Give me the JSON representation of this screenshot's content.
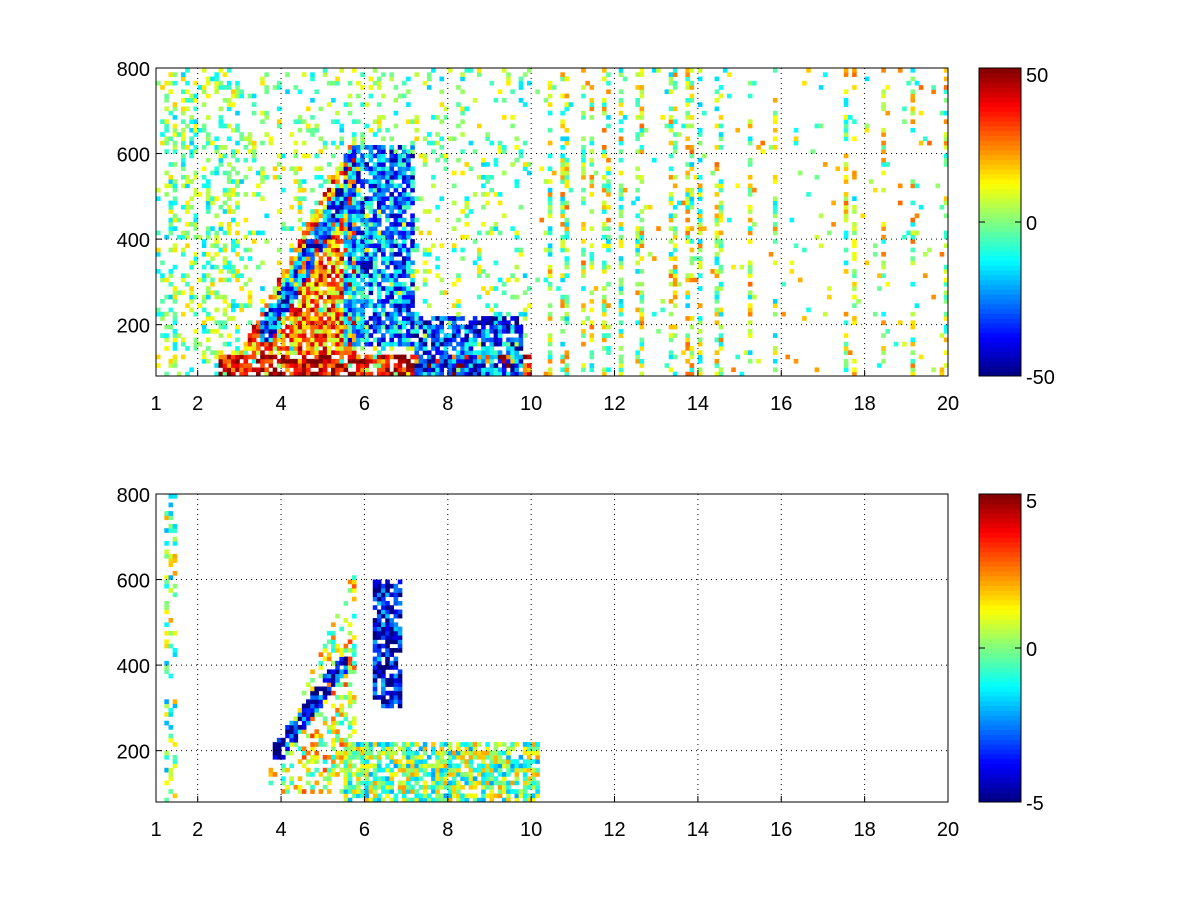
{
  "chart_data": [
    {
      "type": "heatmap",
      "title": "",
      "xlabel": "",
      "ylabel": "",
      "xlim": [
        1,
        20
      ],
      "ylim": [
        80,
        800
      ],
      "xticks": [
        1,
        2,
        4,
        6,
        8,
        10,
        12,
        14,
        16,
        18,
        20
      ],
      "xtick_labels": [
        "1",
        "2",
        "4",
        "6",
        "8",
        "10",
        "12",
        "14",
        "16",
        "18",
        "20"
      ],
      "yticks": [
        200,
        400,
        600,
        800
      ],
      "ytick_labels": [
        "200",
        "400",
        "600",
        "800"
      ],
      "grid": true,
      "colormap": "jet",
      "clim": [
        -50,
        50
      ],
      "colorbar_ticks": [
        50,
        0,
        -50
      ],
      "colorbar_tick_labels": [
        "50",
        "0",
        "-50"
      ],
      "nan_color": "#ffffff",
      "features": [
        {
          "name": "low-band",
          "x_range": [
            2.5,
            10
          ],
          "y_range": [
            80,
            130
          ],
          "value": 40
        },
        {
          "name": "fan",
          "x_range": [
            3,
            5.8
          ],
          "y_range": [
            130,
            650
          ],
          "value": 25
        },
        {
          "name": "diagonal",
          "x_range": [
            3.5,
            5.6
          ],
          "y_range": [
            160,
            520
          ],
          "value": -30
        },
        {
          "name": "mid-cluster",
          "x_range": [
            5.5,
            7.2
          ],
          "y_range": [
            150,
            620
          ],
          "value": -25
        },
        {
          "name": "lower-right-blob",
          "x_range": [
            7.2,
            9.8
          ],
          "y_range": [
            80,
            220
          ],
          "value": -30
        },
        {
          "name": "sparse-columns",
          "x_range": [
            10,
            20
          ],
          "y_range": [
            80,
            800
          ],
          "value": 5
        }
      ]
    },
    {
      "type": "heatmap",
      "title": "",
      "xlabel": "",
      "ylabel": "",
      "xlim": [
        1,
        20
      ],
      "ylim": [
        80,
        800
      ],
      "xticks": [
        1,
        2,
        4,
        6,
        8,
        10,
        12,
        14,
        16,
        18,
        20
      ],
      "xtick_labels": [
        "1",
        "2",
        "4",
        "6",
        "8",
        "10",
        "12",
        "14",
        "16",
        "18",
        "20"
      ],
      "yticks": [
        200,
        400,
        600,
        800
      ],
      "ytick_labels": [
        "200",
        "400",
        "600",
        "800"
      ],
      "grid": true,
      "colormap": "jet",
      "clim": [
        -5,
        5
      ],
      "colorbar_ticks": [
        5,
        0,
        -5
      ],
      "colorbar_tick_labels": [
        "5",
        "0",
        "-5"
      ],
      "nan_color": "#ffffff",
      "features": [
        {
          "name": "fan",
          "x_range": [
            3.5,
            5.8
          ],
          "y_range": [
            100,
            630
          ],
          "value": 1
        },
        {
          "name": "diagonal",
          "x_range": [
            3.8,
            5.6
          ],
          "y_range": [
            180,
            420
          ],
          "value": -4
        },
        {
          "name": "blue-streak",
          "x_range": [
            6.2,
            6.9
          ],
          "y_range": [
            300,
            600
          ],
          "value": -4
        },
        {
          "name": "lower-cluster",
          "x_range": [
            5.5,
            10.2
          ],
          "y_range": [
            80,
            220
          ],
          "value": 0
        },
        {
          "name": "left-spikes",
          "x_range": [
            1.1,
            1.5
          ],
          "y_range": [
            80,
            800
          ],
          "value": 0
        }
      ]
    }
  ]
}
